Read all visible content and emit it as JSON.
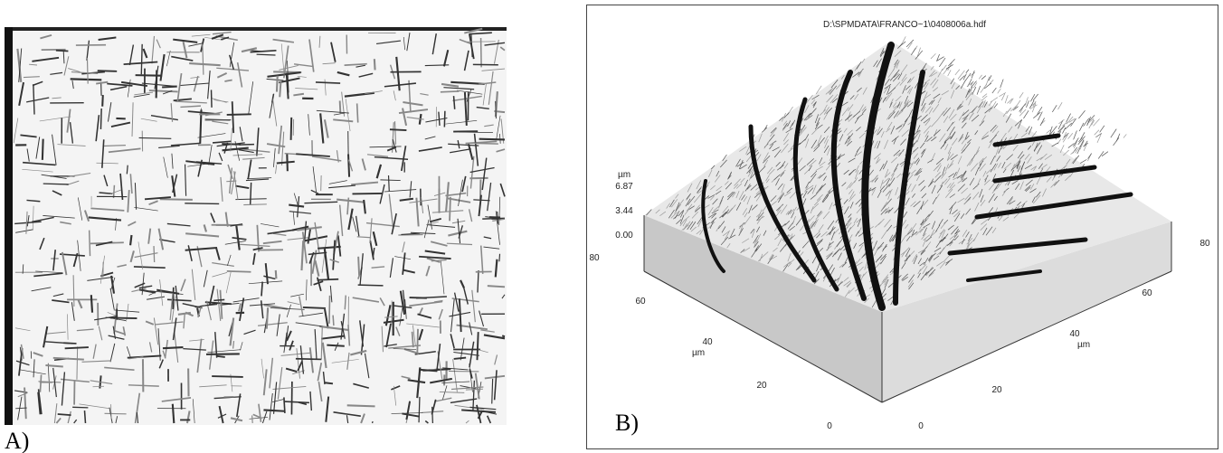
{
  "panel_a": {
    "label": "A)"
  },
  "panel_b": {
    "label": "B)",
    "title": "D:\\SPMDATA\\FRANCO~1\\0408006a.hdf",
    "z_axis": {
      "unit": "µm",
      "ticks": [
        "6.87",
        "3.44",
        "0.00"
      ]
    },
    "x_axis": {
      "unit": "µm",
      "ticks": [
        "80",
        "60",
        "40",
        "20",
        "0"
      ]
    },
    "y_axis": {
      "unit": "µm",
      "ticks": [
        "0",
        "20",
        "40",
        "60",
        "80"
      ]
    }
  }
}
